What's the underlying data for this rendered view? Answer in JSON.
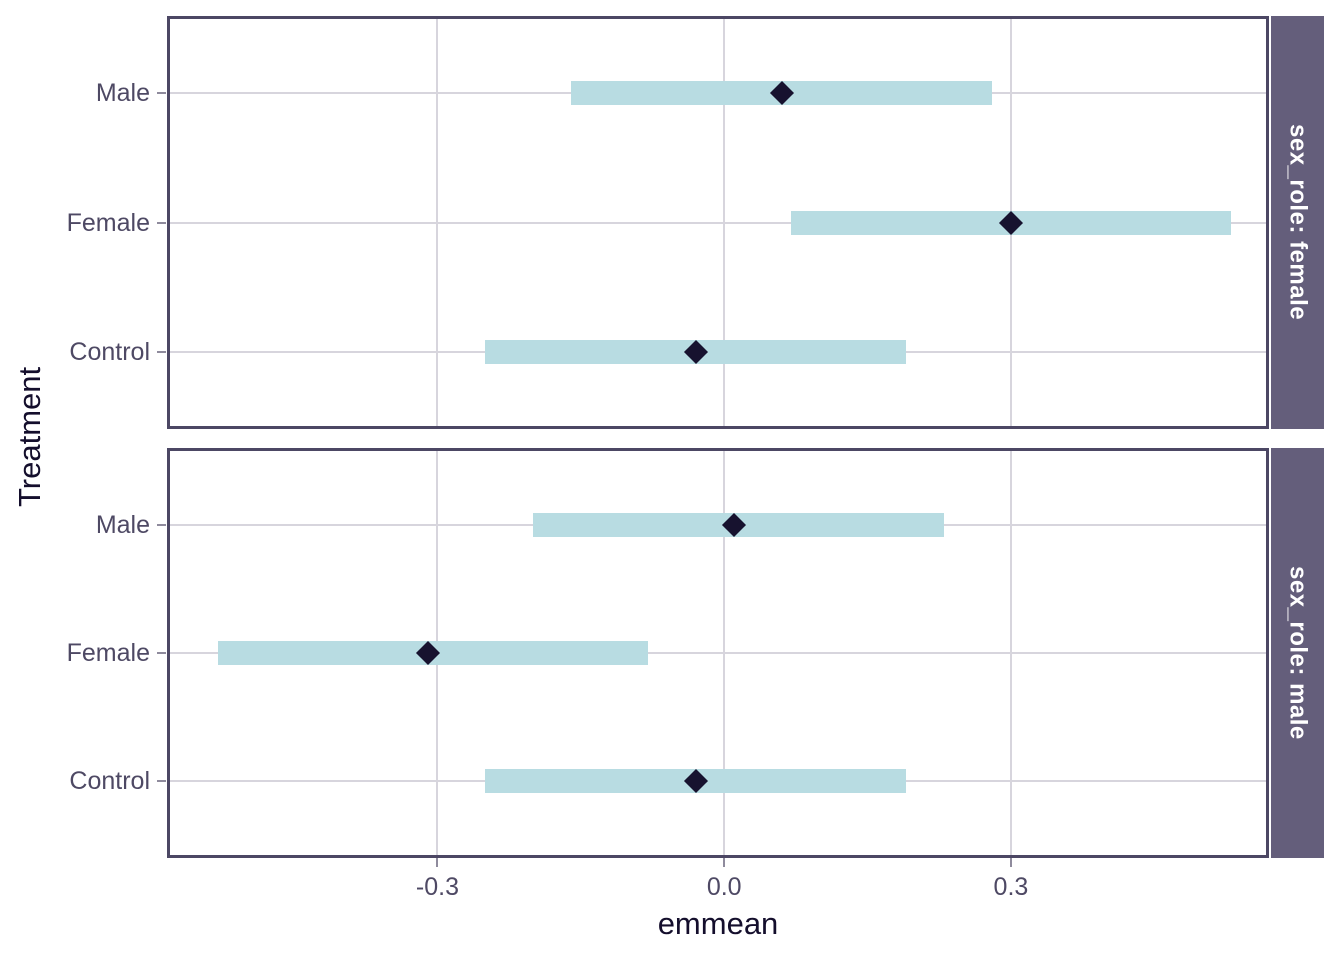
{
  "chart_data": {
    "type": "interval",
    "subtype": "faceted horizontal confidence-interval bars with diamond point estimates (emmeans-style plot)",
    "title": "",
    "xlabel": "emmean",
    "ylabel": "Treatment",
    "xlim": [
      -0.583,
      0.57
    ],
    "x_ticks": [
      {
        "value": -0.3,
        "label": "-0.3"
      },
      {
        "value": 0.0,
        "label": "0.0"
      },
      {
        "value": 0.3,
        "label": "0.3"
      }
    ],
    "categories_top_to_bottom": [
      "Male",
      "Female",
      "Control"
    ],
    "facets": [
      {
        "strip_label": "sex_role: female",
        "rows": [
          {
            "category": "Male",
            "emmean": 0.06,
            "ci_lower": -0.16,
            "ci_upper": 0.28
          },
          {
            "category": "Female",
            "emmean": 0.3,
            "ci_lower": 0.07,
            "ci_upper": 0.53
          },
          {
            "category": "Control",
            "emmean": -0.03,
            "ci_lower": -0.25,
            "ci_upper": 0.19
          }
        ]
      },
      {
        "strip_label": "sex_role: male",
        "rows": [
          {
            "category": "Male",
            "emmean": 0.01,
            "ci_lower": -0.2,
            "ci_upper": 0.23
          },
          {
            "category": "Female",
            "emmean": -0.31,
            "ci_lower": -0.53,
            "ci_upper": -0.08
          },
          {
            "category": "Control",
            "emmean": -0.03,
            "ci_lower": -0.25,
            "ci_upper": 0.19
          }
        ]
      }
    ],
    "grid": "major vertical and horizontal gridlines only, light gray",
    "legend": "none",
    "colors": {
      "interval_bar": "#b8dce2",
      "point": "#17122f",
      "strip_background": "#645e7b",
      "strip_text": "#ffffff",
      "panel_border": "#4c4764",
      "gridline": "#d7d5dd",
      "axis_tick": "#8f8b9d",
      "axis_text": "#4e4964",
      "axis_title": "#140e2c",
      "panel_background": "#ffffff"
    }
  }
}
